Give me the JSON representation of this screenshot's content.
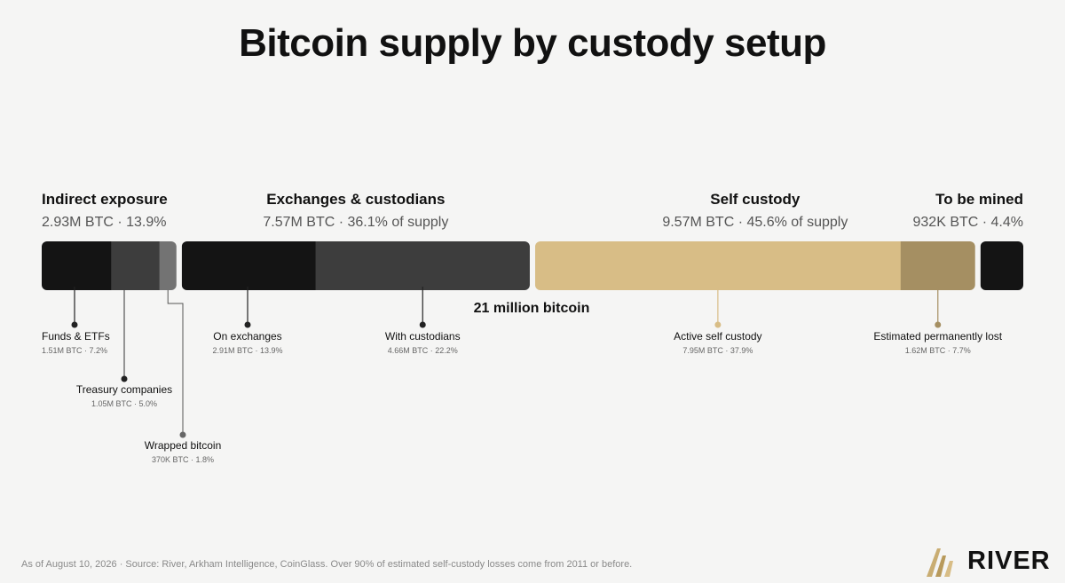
{
  "title": "Bitcoin supply by custody setup",
  "footnote": "As of August 10, 2026 · Source: River, Arkham Intelligence, CoinGlass. Over 90% of estimated self-custody losses come from 2011 or before.",
  "brand": {
    "name": "RIVER",
    "logo_icon": "river-mountain-logo-icon"
  },
  "colors": {
    "dark": "#141414",
    "gray": "#3d3d3d",
    "lightgray": "#737373",
    "gold": "#d8bd86",
    "goldDark": "#a58f62"
  },
  "chart_data": {
    "type": "bar",
    "orientation": "horizontal-stacked",
    "total_label": "21 million bitcoin",
    "groups": [
      {
        "name": "Indirect exposure",
        "summary": "2.93M BTC · 13.9%",
        "align": "left"
      },
      {
        "name": "Exchanges & custodians",
        "summary": "7.57M BTC · 36.1% of supply",
        "align": "center"
      },
      {
        "name": "Self custody",
        "summary": "9.57M BTC · 45.6% of supply",
        "align": "center"
      },
      {
        "name": "To be mined",
        "summary": "932K BTC · 4.4%",
        "align": "right"
      }
    ],
    "series": [
      {
        "name": "Funds & ETFs",
        "group": 0,
        "value": 1.51,
        "detail": "1.51M BTC · 7.2%",
        "color": "#141414",
        "label_row": 0
      },
      {
        "name": "Treasury companies",
        "group": 0,
        "value": 1.05,
        "detail": "1.05M BTC · 5.0%",
        "color": "#3d3d3d",
        "label_row": 1
      },
      {
        "name": "Wrapped bitcoin",
        "group": 0,
        "value": 0.37,
        "detail": "370K BTC · 1.8%",
        "color": "#737373",
        "label_row": 2
      },
      {
        "name": "On exchanges",
        "group": 1,
        "value": 2.91,
        "detail": "2.91M BTC · 13.9%",
        "color": "#141414",
        "label_row": 0
      },
      {
        "name": "With custodians",
        "group": 1,
        "value": 4.66,
        "detail": "4.66M BTC · 22.2%",
        "color": "#3d3d3d",
        "label_row": 0
      },
      {
        "name": "Active self custody",
        "group": 2,
        "value": 7.95,
        "detail": "7.95M BTC · 37.9%",
        "color": "#d8bd86",
        "label_row": 0
      },
      {
        "name": "Estimated permanently lost",
        "group": 2,
        "value": 1.62,
        "detail": "1.62M BTC · 7.7%",
        "color": "#a58f62",
        "label_row": 0
      },
      {
        "name": "To be mined",
        "group": 3,
        "value": 0.932,
        "detail": "",
        "color": "#141414",
        "label_row": -1
      }
    ]
  }
}
